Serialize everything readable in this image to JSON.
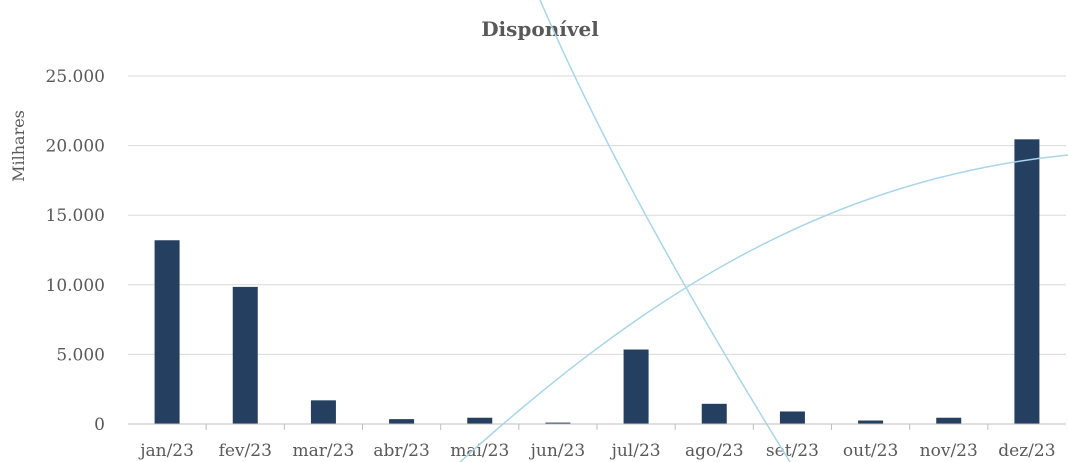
{
  "chart_data": {
    "type": "bar",
    "title": "Disponível",
    "ylabel": "Milhares",
    "xlabel": "",
    "categories": [
      "jan/23",
      "fev/23",
      "mar/23",
      "abr/23",
      "mai/23",
      "jun/23",
      "jul/23",
      "ago/23",
      "set/23",
      "out/23",
      "nov/23",
      "dez/23"
    ],
    "values": [
      13200,
      9850,
      1700,
      350,
      450,
      100,
      5350,
      1450,
      900,
      250,
      450,
      20450
    ],
    "ylim": [
      0,
      25000
    ],
    "yticks": [
      0,
      5000,
      10000,
      15000,
      20000,
      25000
    ],
    "ytick_labels": [
      "0",
      "5.000",
      "10.000",
      "15.000",
      "20.000",
      "25.000"
    ],
    "grid": true,
    "legend": "none",
    "colors": {
      "bar": "#243f60",
      "grid": "#d9d9d9",
      "text": "#595959",
      "decor_arc": "#a9d5ea"
    }
  }
}
